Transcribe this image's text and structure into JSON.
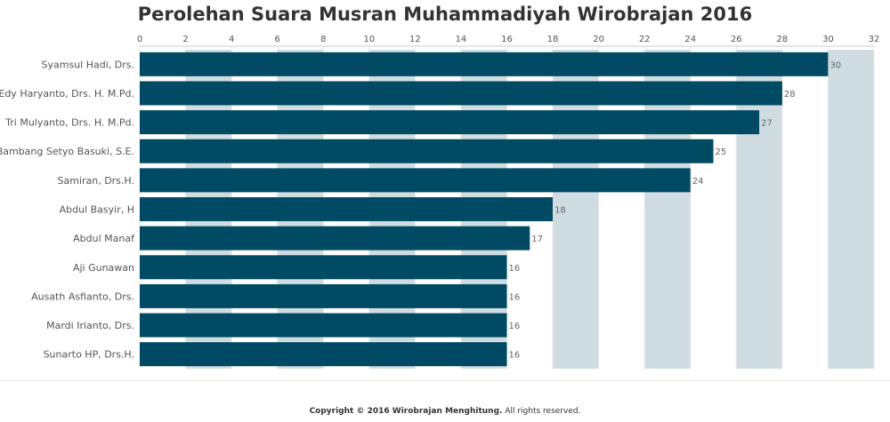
{
  "chart_data": {
    "type": "bar",
    "orientation": "horizontal",
    "title": "Perolehan Suara Musran Muhammadiyah Wirobrajan 2016",
    "categories": [
      "Syamsul Hadi, Drs.",
      "Edy Haryanto, Drs. H. M.Pd.",
      "Tri Mulyanto, Drs. H. M.Pd.",
      "Bambang Setyo Basuki, S.E.",
      "Samiran, Drs.H.",
      "Abdul Basyir, H",
      "Abdul Manaf",
      "Aji Gunawan",
      "Ausath Asfianto, Drs.",
      "Mardi Irianto, Drs.",
      "Sunarto HP, Drs.H."
    ],
    "values": [
      30,
      28,
      27,
      25,
      24,
      18,
      17,
      16,
      16,
      16,
      16
    ],
    "data_labels": [
      "30",
      "28",
      "27",
      "25",
      "24",
      "18",
      "17",
      "16",
      "16",
      "16",
      "16"
    ],
    "xlim": [
      0,
      32
    ],
    "ticks": [
      "0",
      "2",
      "4",
      "6",
      "8",
      "10",
      "12",
      "14",
      "16",
      "18",
      "20",
      "22",
      "24",
      "26",
      "28",
      "30",
      "32"
    ],
    "grid": "alternating vertical bands",
    "axis_position": "top",
    "bar_color": "#004b63",
    "band_color": "#cfdde3"
  },
  "footer": {
    "owner": "Copyright © 2016 Wirobrajan Menghitung.",
    "rights": " All rights reserved."
  }
}
